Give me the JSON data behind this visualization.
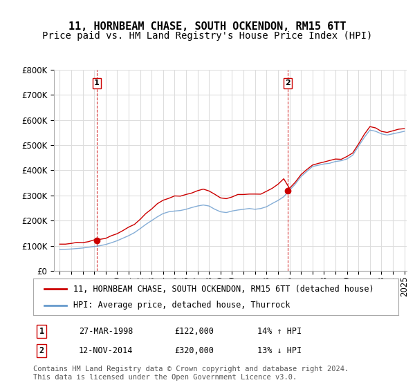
{
  "title": "11, HORNBEAM CHASE, SOUTH OCKENDON, RM15 6TT",
  "subtitle": "Price paid vs. HM Land Registry's House Price Index (HPI)",
  "ylabel_ticks": [
    "£0",
    "£100K",
    "£200K",
    "£300K",
    "£400K",
    "£500K",
    "£600K",
    "£700K",
    "£800K"
  ],
  "ylim": [
    0,
    800000
  ],
  "ytick_vals": [
    0,
    100000,
    200000,
    300000,
    400000,
    500000,
    600000,
    700000,
    800000
  ],
  "x_start_year": 1995,
  "x_end_year": 2025,
  "sale1_year": 1998.23,
  "sale1_price": 122000,
  "sale2_year": 2014.87,
  "sale2_price": 320000,
  "legend_line1": "11, HORNBEAM CHASE, SOUTH OCKENDON, RM15 6TT (detached house)",
  "legend_line2": "HPI: Average price, detached house, Thurrock",
  "table_row1": [
    "1",
    "27-MAR-1998",
    "£122,000",
    "14% ↑ HPI"
  ],
  "table_row2": [
    "2",
    "12-NOV-2014",
    "£320,000",
    "13% ↓ HPI"
  ],
  "footnote": "Contains HM Land Registry data © Crown copyright and database right 2024.\nThis data is licensed under the Open Government Licence v3.0.",
  "red_line_color": "#cc0000",
  "blue_line_color": "#6699cc",
  "background_color": "#ffffff",
  "grid_color": "#dddddd",
  "vline_color": "#cc0000",
  "marker_color": "#cc0000",
  "title_fontsize": 11,
  "subtitle_fontsize": 10,
  "tick_fontsize": 8.5,
  "legend_fontsize": 8.5,
  "table_fontsize": 8.5,
  "footnote_fontsize": 7.5
}
